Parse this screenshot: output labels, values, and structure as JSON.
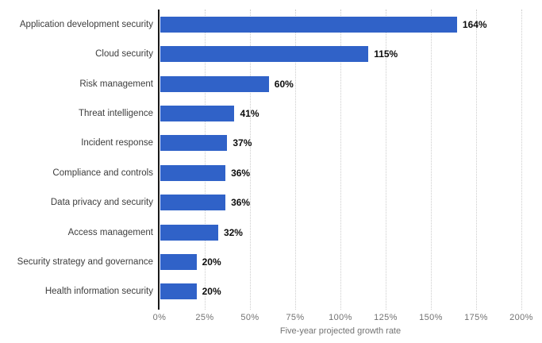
{
  "chart_data": {
    "type": "bar",
    "orientation": "horizontal",
    "title": "",
    "categories": [
      "Application development security",
      "Cloud security",
      "Risk management",
      "Threat intelligence",
      "Incident response",
      "Compliance and controls",
      "Data privacy and security",
      "Access management",
      "Security strategy and governance",
      "Health information security"
    ],
    "values": [
      164,
      115,
      60,
      41,
      37,
      36,
      36,
      32,
      20,
      20
    ],
    "value_labels": [
      "164%",
      "115%",
      "60%",
      "41%",
      "37%",
      "36%",
      "36%",
      "32%",
      "20%",
      "20%"
    ],
    "xlabel": "Five-year projected growth rate",
    "ylabel": "",
    "xlim": [
      0,
      200
    ],
    "x_ticks": [
      "0%",
      "25%",
      "50%",
      "75%",
      "100%",
      "125%",
      "150%",
      "175%",
      "200%"
    ],
    "x_tick_values": [
      0,
      25,
      50,
      75,
      100,
      125,
      150,
      175,
      200
    ],
    "grid": "vertical-dotted",
    "legend": "none",
    "bar_color": "#3062C8"
  },
  "colors": {
    "bar": "#3062C8",
    "axis_line": "#1a1a1a",
    "gridline": "#cccccc",
    "category_label": "#3d3d3d",
    "value_label": "#0d0d0d",
    "tick_label": "#737373",
    "background": "#ffffff"
  }
}
